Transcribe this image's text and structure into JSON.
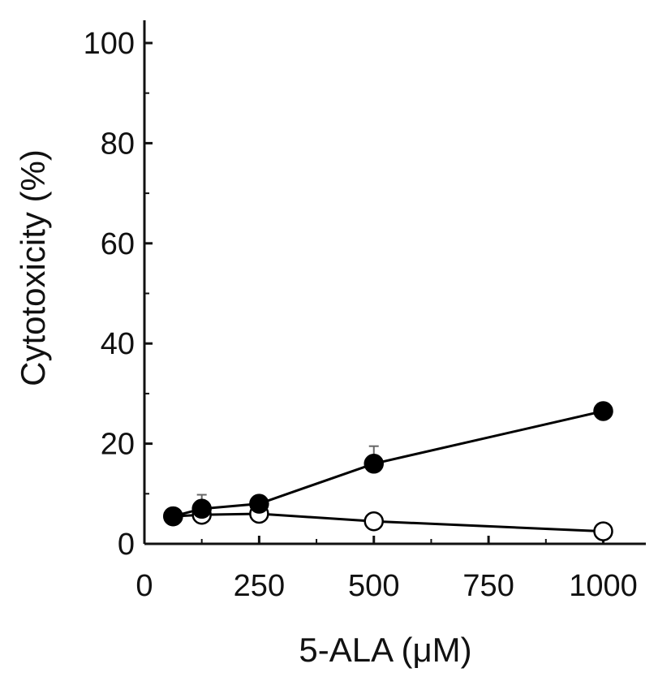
{
  "chart_data": {
    "type": "line",
    "title": "",
    "xlabel": "5-ALA (μM)",
    "ylabel": "Cytotoxicity (%)",
    "xlim": [
      0,
      1100
    ],
    "ylim": [
      0,
      105
    ],
    "xticks": [
      0,
      250,
      500,
      750,
      1000
    ],
    "yticks": [
      0,
      20,
      40,
      60,
      80,
      100
    ],
    "grid": false,
    "series": [
      {
        "marker": "filled-circle",
        "color": "#000000",
        "points": [
          {
            "x": 62.5,
            "y": 5.5,
            "err": 0
          },
          {
            "x": 125,
            "y": 7.0,
            "err": 2.8
          },
          {
            "x": 250,
            "y": 8.0,
            "err": 1.0
          },
          {
            "x": 500,
            "y": 16.0,
            "err": 3.5
          },
          {
            "x": 1000,
            "y": 26.5,
            "err": 0
          }
        ]
      },
      {
        "marker": "open-circle",
        "color": "#000000",
        "points": [
          {
            "x": 62.5,
            "y": 5.5,
            "err": 0
          },
          {
            "x": 125,
            "y": 5.8,
            "err": 0
          },
          {
            "x": 250,
            "y": 6.0,
            "err": 0
          },
          {
            "x": 500,
            "y": 4.5,
            "err": 0
          },
          {
            "x": 1000,
            "y": 2.5,
            "err": 0
          }
        ]
      }
    ]
  }
}
